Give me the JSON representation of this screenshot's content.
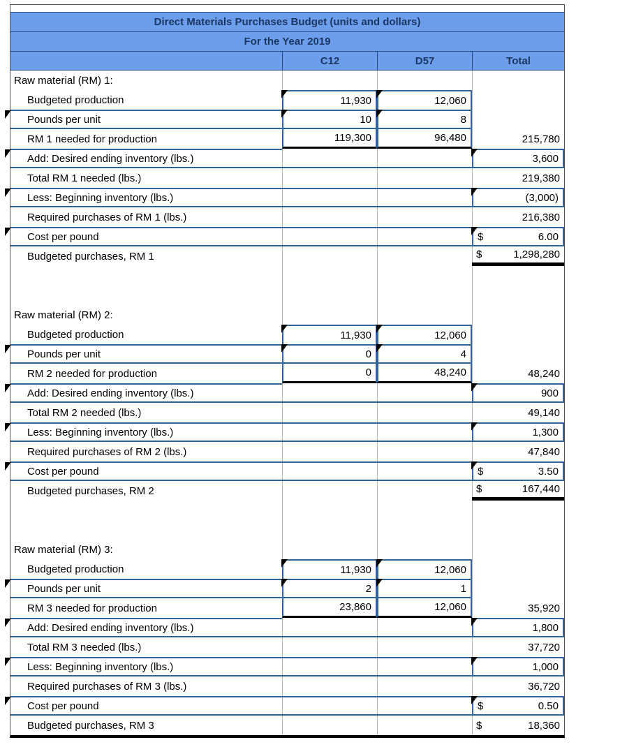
{
  "colors": {
    "header_bg": "#6d9eeb",
    "input_border": "#33639c"
  },
  "table": {
    "title": "Direct Materials Purchases Budget (units and dollars)",
    "subtitle": "For the Year 2019",
    "columns": {
      "c12": "C12",
      "d57": "D57",
      "total": "Total"
    }
  },
  "sections": [
    {
      "header": "Raw material (RM) 1:",
      "budgeted_production": {
        "label": "Budgeted production",
        "c12": "11,930",
        "d57": "12,060"
      },
      "pounds_per_unit": {
        "label": "Pounds per unit",
        "c12": "10",
        "d57": "8"
      },
      "needed_for_production": {
        "label": "RM 1 needed for production",
        "c12": "119,300",
        "d57": "96,480",
        "total": "215,780"
      },
      "desired_ending_inventory": {
        "label": "Add: Desired ending inventory (lbs.)",
        "total": "3,600"
      },
      "total_needed": {
        "label": "Total RM 1 needed (lbs.)",
        "total": "219,380"
      },
      "beginning_inventory": {
        "label": "Less: Beginning inventory (lbs.)",
        "total": "(3,000)"
      },
      "required_purchases": {
        "label": "Required purchases of RM 1 (lbs.)",
        "total": "216,380"
      },
      "cost_per_pound": {
        "label": "Cost per pound",
        "currency": "$",
        "total": "6.00"
      },
      "budgeted_purchases": {
        "label": "Budgeted purchases, RM 1",
        "currency": "$",
        "total": "1,298,280"
      }
    },
    {
      "header": "Raw material (RM) 2:",
      "budgeted_production": {
        "label": "Budgeted production",
        "c12": "11,930",
        "d57": "12,060"
      },
      "pounds_per_unit": {
        "label": "Pounds per unit",
        "c12": "0",
        "d57": "4"
      },
      "needed_for_production": {
        "label": "RM 2 needed for production",
        "c12": "0",
        "d57": "48,240",
        "total": "48,240"
      },
      "desired_ending_inventory": {
        "label": "Add: Desired ending inventory (lbs.)",
        "total": "900"
      },
      "total_needed": {
        "label": "Total RM 2 needed (lbs.)",
        "total": "49,140"
      },
      "beginning_inventory": {
        "label": "Less: Beginning inventory (lbs.)",
        "total": "1,300"
      },
      "required_purchases": {
        "label": "Required purchases of RM 2 (lbs.)",
        "total": "47,840"
      },
      "cost_per_pound": {
        "label": "Cost per pound",
        "currency": "$",
        "total": "3.50"
      },
      "budgeted_purchases": {
        "label": "Budgeted purchases, RM 2",
        "currency": "$",
        "total": "167,440"
      }
    },
    {
      "header": "Raw material (RM) 3:",
      "budgeted_production": {
        "label": "Budgeted production",
        "c12": "11,930",
        "d57": "12,060"
      },
      "pounds_per_unit": {
        "label": "Pounds per unit",
        "c12": "2",
        "d57": "1"
      },
      "needed_for_production": {
        "label": "RM 3 needed for production",
        "c12": "23,860",
        "d57": "12,060",
        "total": "35,920"
      },
      "desired_ending_inventory": {
        "label": "Add: Desired ending inventory (lbs.)",
        "total": "1,800"
      },
      "total_needed": {
        "label": "Total RM 3 needed (lbs.)",
        "total": "37,720"
      },
      "beginning_inventory": {
        "label": "Less: Beginning inventory (lbs.)",
        "total": "1,000"
      },
      "required_purchases": {
        "label": "Required purchases of RM 3 (lbs.)",
        "total": "36,720"
      },
      "cost_per_pound": {
        "label": "Cost per pound",
        "currency": "$",
        "total": "0.50"
      },
      "budgeted_purchases": {
        "label": "Budgeted purchases, RM 3",
        "currency": "$",
        "total": "18,360"
      }
    }
  ]
}
